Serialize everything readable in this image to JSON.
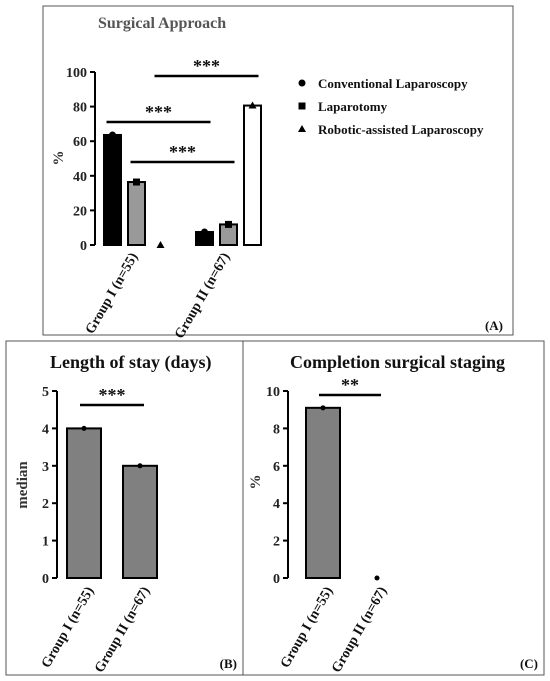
{
  "chart_data": [
    {
      "panel": "(A)",
      "type": "bar",
      "title": "Surgical Approach",
      "ylabel": "%",
      "ylim": [
        0,
        100
      ],
      "yticks": [
        "0",
        "20",
        "40",
        "60",
        "80",
        "100"
      ],
      "categories": [
        "Group I (n=55)",
        "Group II (n=67)"
      ],
      "series": [
        {
          "name": "Conventional Laparoscopy",
          "marker": "circle",
          "color": "#000000",
          "values": [
            63.6,
            7.5
          ]
        },
        {
          "name": "Laparotomy",
          "marker": "square",
          "color": "#999999",
          "values": [
            36.4,
            11.9
          ]
        },
        {
          "name": "Robotic-assisted Laparoscopy",
          "marker": "triangle",
          "color": "#ffffff",
          "values": [
            0,
            80.6
          ]
        }
      ],
      "legend": "right",
      "significance": [
        {
          "label": "***",
          "from_series": 0,
          "from_cat": 0,
          "to_series": 0,
          "to_cat": 1
        },
        {
          "label": "***",
          "from_series": 1,
          "from_cat": 0,
          "to_series": 1,
          "to_cat": 1
        },
        {
          "label": "***",
          "from_series": 2,
          "from_cat": 0,
          "to_series": 2,
          "to_cat": 1
        }
      ]
    },
    {
      "panel": "(B)",
      "type": "bar",
      "title": "Length of stay (days)",
      "ylabel": "median",
      "ylim": [
        0,
        5
      ],
      "yticks": [
        "0",
        "1",
        "2",
        "3",
        "4",
        "5"
      ],
      "categories": [
        "Group I (n=55)",
        "Group II (n=67)"
      ],
      "values": [
        4,
        3
      ],
      "color": "#808080",
      "significance": [
        {
          "label": "***",
          "from_cat": 0,
          "to_cat": 1
        }
      ]
    },
    {
      "panel": "(C)",
      "type": "bar",
      "title": "Completion surgical staging",
      "ylabel": "%",
      "ylim": [
        0,
        10
      ],
      "yticks": [
        "0",
        "2",
        "4",
        "6",
        "8",
        "10"
      ],
      "categories": [
        "Group I (n=55)",
        "Group II (n=67)"
      ],
      "values": [
        9.1,
        0
      ],
      "color": "#808080",
      "significance": [
        {
          "label": "**",
          "from_cat": 0,
          "to_cat": 1
        }
      ]
    }
  ]
}
